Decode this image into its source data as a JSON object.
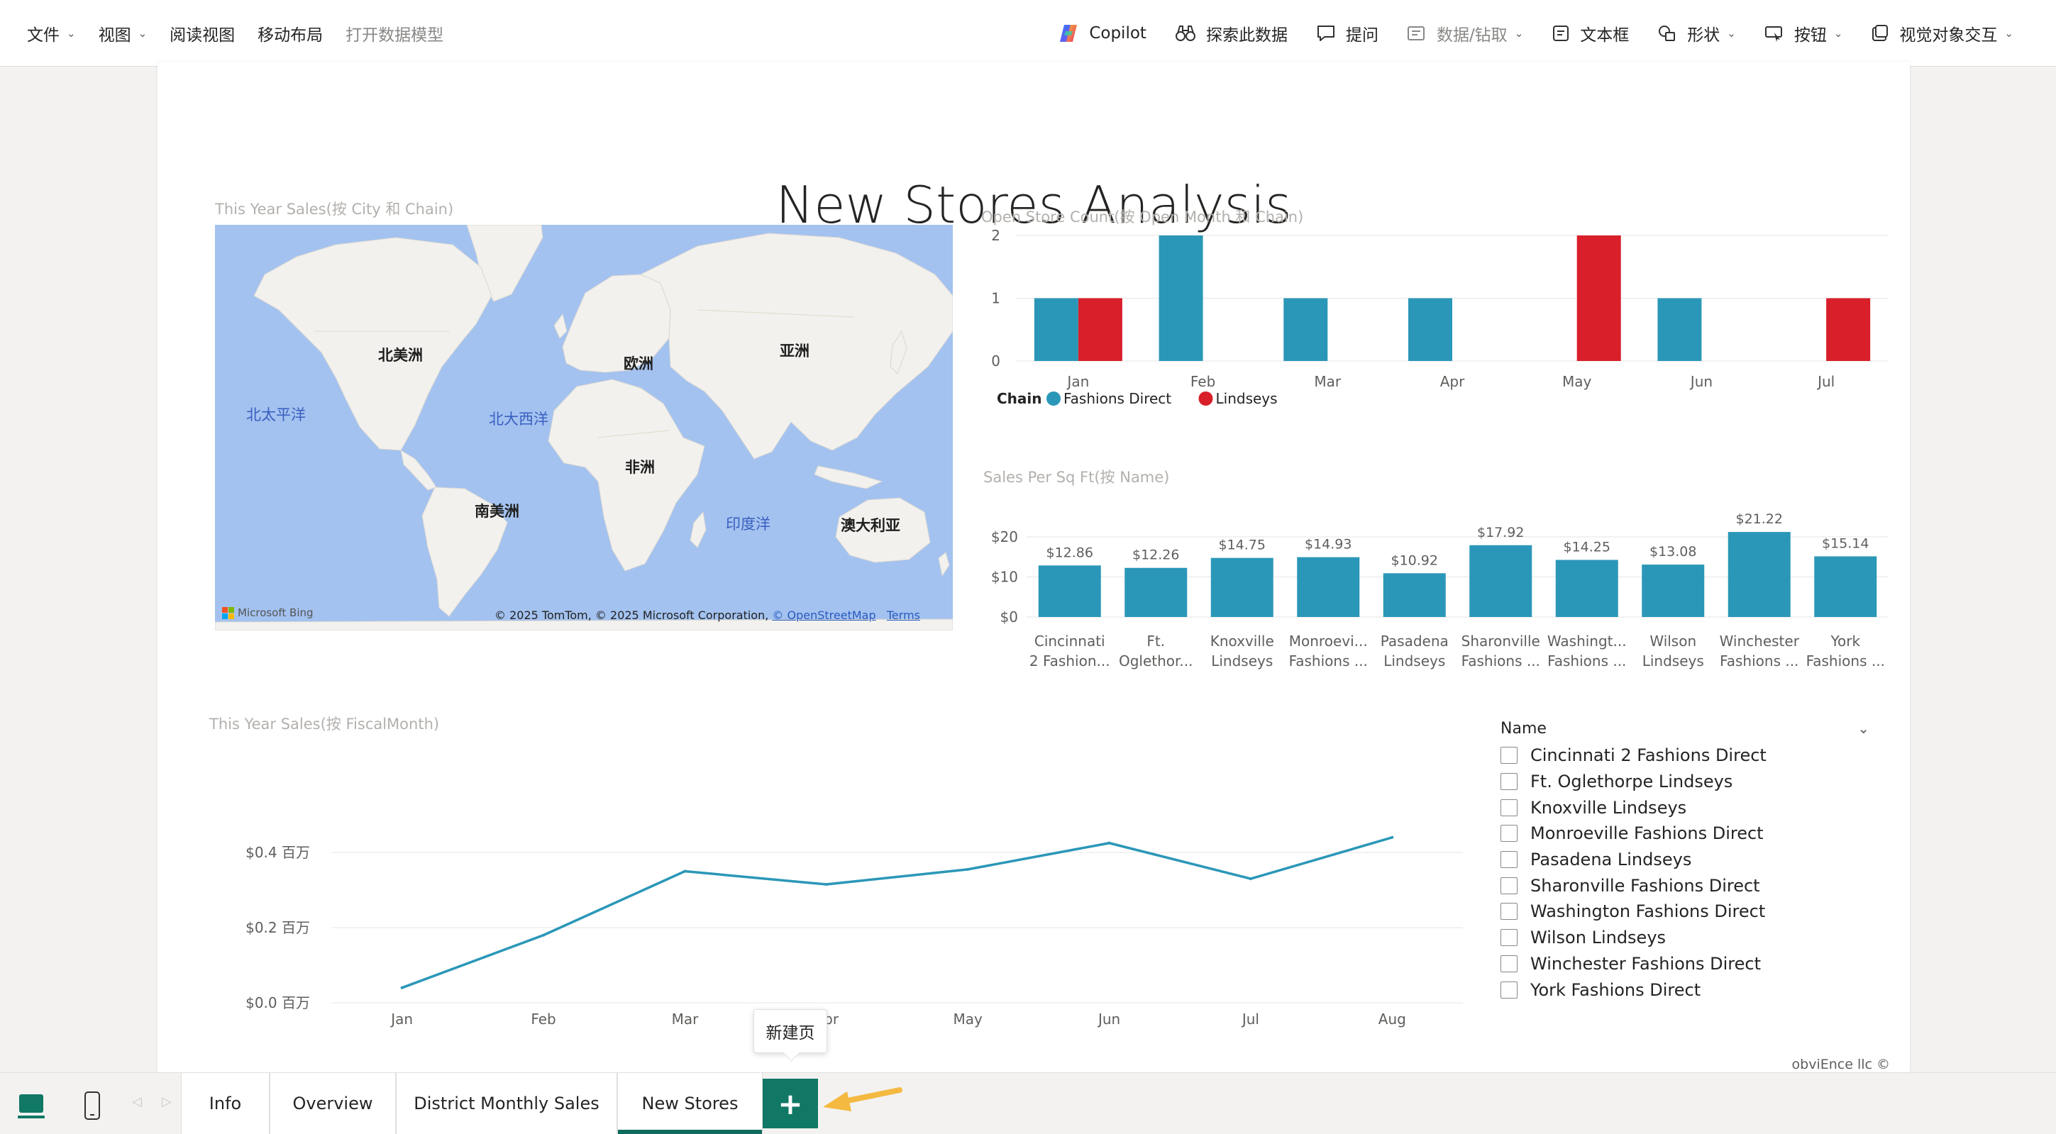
{
  "ribbon": {
    "left_items": [
      {
        "label": "文件",
        "caret": true,
        "disabled": false
      },
      {
        "label": "视图",
        "caret": true,
        "disabled": false
      },
      {
        "label": "阅读视图",
        "caret": false,
        "disabled": false
      },
      {
        "label": "移动布局",
        "caret": false,
        "disabled": false
      },
      {
        "label": "打开数据模型",
        "caret": false,
        "disabled": true
      }
    ],
    "copilot": "Copilot",
    "explore": "探索此数据",
    "qa": "提问",
    "data_drill": "数据/钻取",
    "textbox": "文本框",
    "shapes": "形状",
    "buttons": "按钮",
    "visual_interactions": "视觉对象交互"
  },
  "report": {
    "title": "New Stores Analysis",
    "map": {
      "title": "This Year Sales(按 City 和 Chain)",
      "labels": {
        "north_america": "北美洲",
        "europe": "欧洲",
        "asia": "亚洲",
        "africa": "非洲",
        "south_america": "南美洲",
        "oceania": "澳大利亚",
        "north_pacific": "北太平洋",
        "north_atlantic": "北大西洋",
        "indian_ocean": "印度洋"
      },
      "bing": "Microsoft Bing",
      "credit": "© 2025 TomTom, © 2025 Microsoft Corporation,",
      "osm": "© OpenStreetMap",
      "terms": "Terms"
    },
    "slicer": {
      "title": "Name",
      "items": [
        "Cincinnati 2 Fashions Direct",
        "Ft. Oglethorpe Lindseys",
        "Knoxville Lindseys",
        "Monroeville Fashions Direct",
        "Pasadena Lindseys",
        "Sharonville Fashions Direct",
        "Washington Fashions Direct",
        "Wilson Lindseys",
        "Winchester Fashions Direct",
        "York Fashions Direct"
      ]
    },
    "watermark": "obviEnce llc ©"
  },
  "chart_data": [
    {
      "id": "open_store_count",
      "type": "bar",
      "title": "Open Store Count(按 Open Month 和 Chain)",
      "categories": [
        "Jan",
        "Feb",
        "Mar",
        "Apr",
        "May",
        "Jun",
        "Jul"
      ],
      "series": [
        {
          "name": "Fashions Direct",
          "color": "#2b97b8",
          "values": [
            1,
            2,
            1,
            1,
            0,
            1,
            0
          ]
        },
        {
          "name": "Lindseys",
          "color": "#d81f2a",
          "values": [
            1,
            0,
            0,
            0,
            2,
            0,
            1
          ]
        }
      ],
      "yticks": [
        "0",
        "1",
        "2"
      ],
      "ylim": [
        0,
        2
      ],
      "legend_title": "Chain",
      "legend_position": "bottom-left",
      "grid": true
    },
    {
      "id": "sales_per_sqft",
      "type": "bar",
      "title": "Sales Per Sq Ft(按 Name)",
      "categories": [
        [
          "Cincinnati",
          "2 Fashion..."
        ],
        [
          "Ft.",
          "Oglethor..."
        ],
        [
          "Knoxville",
          "Lindseys"
        ],
        [
          "Monroevi...",
          "Fashions ..."
        ],
        [
          "Pasadena",
          "Lindseys"
        ],
        [
          "Sharonville",
          "Fashions ..."
        ],
        [
          "Washingt...",
          "Fashions ..."
        ],
        [
          "Wilson",
          "Lindseys"
        ],
        [
          "Winchester",
          "Fashions ..."
        ],
        [
          "York",
          "Fashions ..."
        ]
      ],
      "values": [
        12.86,
        12.26,
        14.75,
        14.93,
        10.92,
        17.92,
        14.25,
        13.08,
        21.22,
        15.14
      ],
      "data_labels": [
        "$12.86",
        "$12.26",
        "$14.75",
        "$14.93",
        "$10.92",
        "$17.92",
        "$14.25",
        "$13.08",
        "$21.22",
        "$15.14"
      ],
      "color": "#2b97b8",
      "yticks": [
        "$0",
        "$10",
        "$20"
      ],
      "ylim": [
        0,
        20
      ],
      "grid": true
    },
    {
      "id": "this_year_sales_month",
      "type": "line",
      "title": "This Year Sales(按 FiscalMonth)",
      "x": [
        "Jan",
        "Feb",
        "Mar",
        "Apr",
        "May",
        "Jun",
        "Jul",
        "Aug"
      ],
      "values": [
        0.04,
        0.18,
        0.35,
        0.315,
        0.355,
        0.425,
        0.33,
        0.44
      ],
      "color": "#2b97b8",
      "yticks": [
        "$0.0 百万",
        "$0.2 百万",
        "$0.4 百万"
      ],
      "ylim": [
        0,
        0.4
      ],
      "grid": true
    }
  ],
  "tabs": {
    "pages": [
      "Info",
      "Overview",
      "District Monthly Sales",
      "New Stores"
    ],
    "active": "New Stores",
    "add_tooltip": "新建页",
    "add_label": "+"
  },
  "colors": {
    "accent": "#117865",
    "fashions_direct": "#2b97b8",
    "lindseys": "#d81f2a",
    "map_water": "#a3c2f0",
    "map_land": "#f2f1ee"
  }
}
